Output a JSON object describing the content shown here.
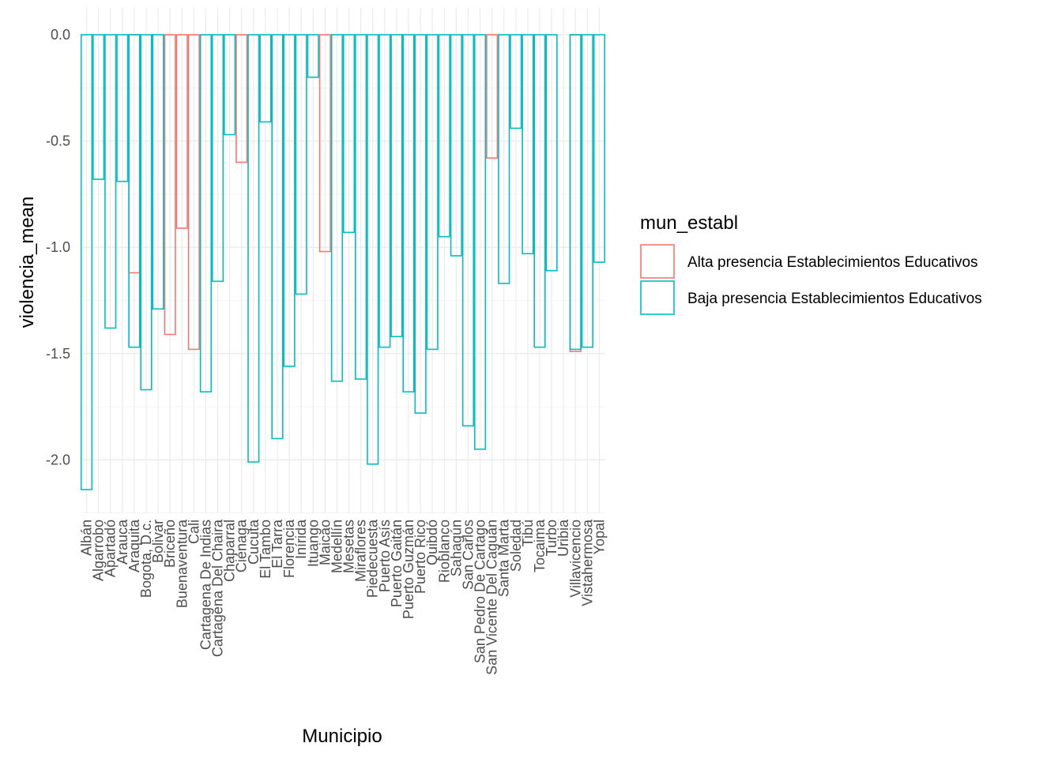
{
  "chart_data": {
    "type": "bar",
    "xlabel": "Municipio",
    "ylabel": "violencia_mean",
    "ylim": [
      -2.25,
      0.1
    ],
    "yticks": [
      0.0,
      -0.5,
      -1.0,
      -1.5,
      -2.0
    ],
    "ytick_labels": [
      "0.0",
      "-0.5",
      "-1.0",
      "-1.5",
      "-2.0"
    ],
    "grid": true,
    "legend": {
      "title": "mun_establ",
      "position": "right",
      "entries": [
        {
          "label": "Alta presencia Establecimientos Educativos",
          "color": "#F8766D"
        },
        {
          "label": "Baja presencia Establecimientos Educativos",
          "color": "#00BFC4"
        }
      ]
    },
    "categories": [
      "Albán",
      "Algarrobo",
      "Apartadó",
      "Arauca",
      "Araquita",
      "Bogota, D.c.",
      "Bolivar",
      "Briceño",
      "Buenaventura",
      "Cali",
      "Cartagena De Indias",
      "Cartagena Del Chaira",
      "Chaparral",
      "Ciénaga",
      "Cucuta",
      "El Tambo",
      "El Tarra",
      "Florencia",
      "Inírida",
      "Ituango",
      "Maicao",
      "Medellín",
      "Mesetas",
      "Miraflores",
      "Piedecuesta",
      "Puerto Asís",
      "Puerto Gaitán",
      "Puerto Guzmán",
      "Puerto Rico",
      "Quibdó",
      "Rioblanco",
      "Sahagún",
      "San Carlos",
      "San Pedro De Cartago",
      "San Vicente Del Caguán",
      "Santa Marta",
      "Soledad",
      "Tibú",
      "Tocaima",
      "Turbo",
      "Uribia",
      "Villavicencio",
      "Vistahermosa",
      "Yopal"
    ],
    "series": [
      {
        "name": "Alta presencia Establecimientos Educativos",
        "color": "#F8766D",
        "values": [
          null,
          null,
          null,
          null,
          -1.12,
          null,
          null,
          -1.41,
          -0.91,
          -1.48,
          null,
          null,
          null,
          -0.6,
          null,
          null,
          null,
          null,
          null,
          null,
          -1.02,
          null,
          null,
          null,
          null,
          null,
          null,
          null,
          null,
          null,
          null,
          null,
          null,
          null,
          -0.58,
          null,
          null,
          null,
          null,
          null,
          null,
          -1.49,
          null,
          null
        ]
      },
      {
        "name": "Baja presencia Establecimientos Educativos",
        "color": "#00BFC4",
        "values": [
          -2.14,
          -0.68,
          -1.38,
          -0.69,
          -1.47,
          -1.67,
          -1.29,
          null,
          null,
          null,
          -1.68,
          -1.16,
          -0.47,
          null,
          -2.01,
          -0.41,
          -1.9,
          -1.56,
          -1.22,
          -0.2,
          null,
          -1.63,
          -0.93,
          -1.62,
          -2.02,
          -1.47,
          -1.42,
          -1.68,
          -1.78,
          -1.48,
          -0.95,
          -1.04,
          -1.84,
          -1.95,
          null,
          -1.17,
          -0.44,
          -1.03,
          -1.47,
          -1.11,
          null,
          -1.48,
          -1.47,
          -1.07
        ]
      }
    ]
  }
}
